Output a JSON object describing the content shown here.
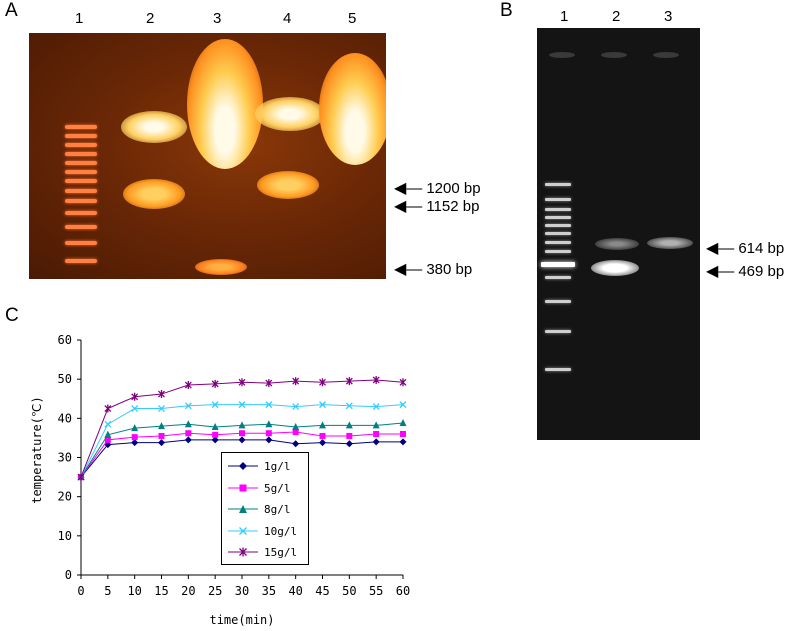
{
  "panel_a": {
    "label": "A",
    "lane_numbers": [
      "1",
      "2",
      "3",
      "4",
      "5"
    ],
    "bp_labels": [
      "1200 bp",
      "1152 bp",
      "380 bp"
    ]
  },
  "panel_b": {
    "label": "B",
    "lane_numbers": [
      "1",
      "2",
      "3"
    ],
    "bp_labels": [
      "614 bp",
      "469 bp"
    ]
  },
  "panel_c": {
    "label": "C"
  },
  "chart_data": {
    "type": "line",
    "xlabel": "time(min)",
    "ylabel": "temperature(℃)",
    "xlim": [
      0,
      60
    ],
    "ylim": [
      0,
      60
    ],
    "x_ticks": [
      "0",
      "5",
      "10",
      "15",
      "20",
      "25",
      "30",
      "35",
      "40",
      "45",
      "50",
      "55",
      "60"
    ],
    "y_ticks": [
      "0",
      "10",
      "20",
      "30",
      "40",
      "50",
      "60"
    ],
    "x": [
      0,
      5,
      10,
      15,
      20,
      25,
      30,
      35,
      40,
      45,
      50,
      55,
      60
    ],
    "grid": false,
    "legend_position": "bottom-center",
    "series": [
      {
        "name": "1g/l",
        "color": "#000080",
        "marker": "diamond",
        "values": [
          25,
          33.3,
          33.8,
          33.8,
          34.5,
          34.5,
          34.5,
          34.5,
          33.5,
          33.8,
          33.5,
          34,
          34
        ]
      },
      {
        "name": "5g/l",
        "color": "#ff00ff",
        "marker": "square",
        "values": [
          25,
          34.5,
          35.2,
          35.5,
          36.2,
          35.8,
          36.2,
          36.2,
          36.5,
          35.5,
          35.5,
          36,
          36
        ]
      },
      {
        "name": "8g/l",
        "color": "#008080",
        "marker": "triangle",
        "values": [
          25,
          35.8,
          37.5,
          38,
          38.5,
          37.8,
          38.2,
          38.5,
          37.8,
          38.2,
          38.2,
          38.2,
          38.8
        ]
      },
      {
        "name": "10g/l",
        "color": "#33ccff",
        "marker": "x",
        "values": [
          25,
          38.5,
          42.5,
          42.5,
          43.2,
          43.5,
          43.5,
          43.5,
          43,
          43.5,
          43.2,
          43,
          43.5
        ]
      },
      {
        "name": "15g/l",
        "color": "#800080",
        "marker": "star",
        "values": [
          25,
          42.5,
          45.5,
          46.2,
          48.5,
          48.8,
          49.2,
          49,
          49.5,
          49.2,
          49.5,
          49.8,
          49.2
        ]
      }
    ]
  }
}
